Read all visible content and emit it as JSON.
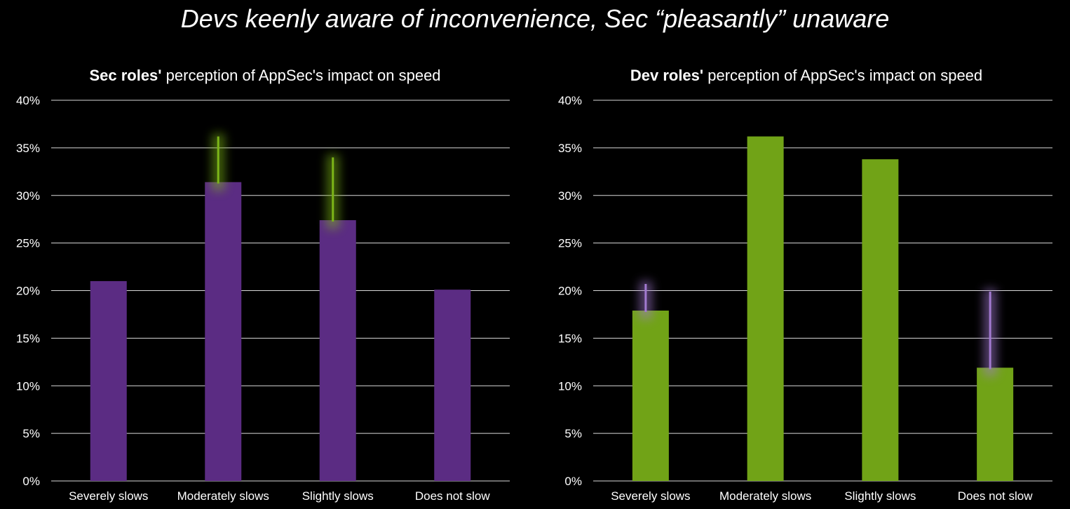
{
  "title": "Devs keenly aware of inconvenience, Sec “pleasantly” unaware",
  "colors": {
    "sec": "#5b2c83",
    "dev": "#71a317",
    "sec_line": "#a27ad0",
    "dev_line": "#7cb518",
    "grid": "#d9d9d9",
    "background": "#000000"
  },
  "chart_data": [
    {
      "type": "bar",
      "title_bold": "Sec roles'",
      "title_rest": " perception of AppSec's impact on speed",
      "categories": [
        "Severely slows",
        "Moderately slows",
        "Slightly slows",
        "Does not slow"
      ],
      "values": [
        21.0,
        31.4,
        27.4,
        20.1
      ],
      "comparison_lines": [
        null,
        36.2,
        34.0,
        null
      ],
      "bar_color": "#5b2c83",
      "line_color": "#7cb518",
      "ylim": [
        0,
        40
      ],
      "yticks": [
        "0%",
        "5%",
        "10%",
        "15%",
        "20%",
        "25%",
        "30%",
        "35%",
        "40%"
      ],
      "grid": true
    },
    {
      "type": "bar",
      "title_bold": "Dev roles'",
      "title_rest": " perception of AppSec's impact on speed",
      "categories": [
        "Severely slows",
        "Moderately slows",
        "Slightly slows",
        "Does not slow"
      ],
      "values": [
        17.9,
        36.2,
        33.8,
        11.9
      ],
      "comparison_lines": [
        20.7,
        null,
        null,
        19.9
      ],
      "bar_color": "#71a317",
      "line_color": "#a27ad0",
      "ylim": [
        0,
        40
      ],
      "yticks": [
        "0%",
        "5%",
        "10%",
        "15%",
        "20%",
        "25%",
        "30%",
        "35%",
        "40%"
      ],
      "grid": true
    }
  ]
}
